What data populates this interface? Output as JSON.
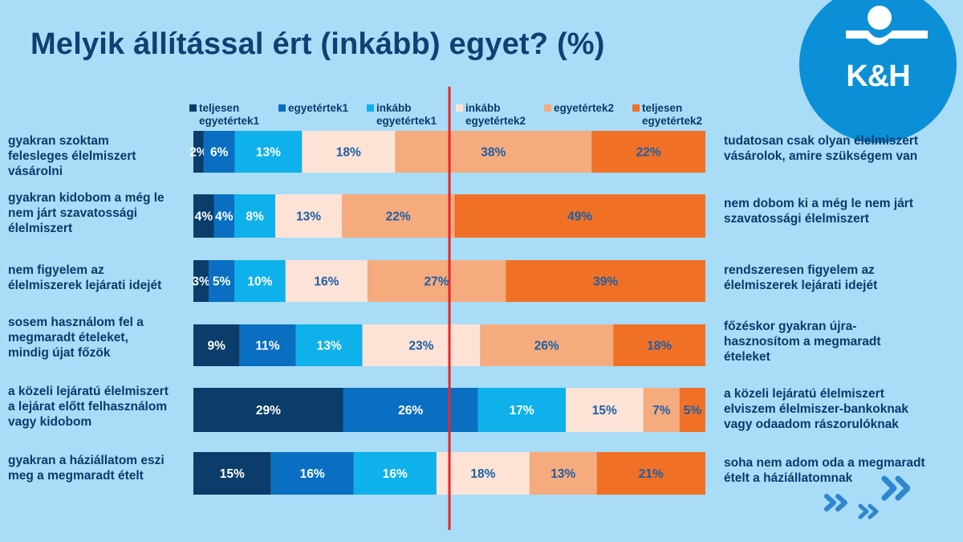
{
  "title": "Melyik állítással ért (inkább) egyet? (%)",
  "logo": {
    "text": "K&H",
    "colors": {
      "circle": "#0b8fd6",
      "mark": "#ffffff"
    }
  },
  "colors": {
    "background": "#a9dcf7",
    "title": "#0f3f73",
    "divider": "#e8262a",
    "arrows": "#2e86d0"
  },
  "chart_data": {
    "type": "bar",
    "orientation": "horizontal",
    "stacked": true,
    "grid": false,
    "legend_position": "top",
    "series": [
      {
        "name": "teljesen egyetértek1",
        "color": "#0a3d6a",
        "label_color": "#ffffff",
        "values": [
          2,
          4,
          3,
          9,
          29,
          15
        ]
      },
      {
        "name": "egyetértek1",
        "color": "#0a6fc2",
        "label_color": "#ffffff",
        "values": [
          6,
          4,
          5,
          11,
          26,
          16
        ]
      },
      {
        "name": "inkább egyetértek1",
        "color": "#0fb1ea",
        "label_color": "#ffffff",
        "values": [
          13,
          8,
          10,
          13,
          17,
          16
        ]
      },
      {
        "name": "inkább egyetértek2",
        "color": "#fce3d6",
        "label_color": "#1d5fa6",
        "values": [
          18,
          13,
          16,
          23,
          15,
          18
        ]
      },
      {
        "name": "egyetértek2",
        "color": "#f5ab7d",
        "label_color": "#1d5fa6",
        "values": [
          38,
          22,
          27,
          26,
          7,
          13
        ]
      },
      {
        "name": "teljesen egyetértek2",
        "color": "#f07125",
        "label_color": "#1d5fa6",
        "values": [
          22,
          49,
          39,
          18,
          5,
          21
        ]
      }
    ],
    "categories_left": [
      [
        "gyakran szoktam",
        "felesleges élelmiszert",
        "vásárolni"
      ],
      [
        "gyakran kidobom a még le",
        "nem járt szavatossági",
        "élelmiszert"
      ],
      [
        "nem figyelem az",
        "élelmiszerek lejárati idejét"
      ],
      [
        "sosem használom fel a",
        "megmaradt ételeket,",
        "mindig újat főzök"
      ],
      [
        "a közeli lejáratú élelmiszert",
        "a lejárat előtt felhasználom",
        "vagy kidobom"
      ],
      [
        "gyakran a háziállatom eszi",
        "meg a megmaradt ételt"
      ]
    ],
    "categories_right": [
      [
        "tudatosan csak olyan élelmiszert",
        "vásárolok, amire szükségem van"
      ],
      [
        "nem dobom ki a még le nem járt",
        "szavatossági élelmiszert"
      ],
      [
        "rendszeresen figyelem az",
        "élelmiszerek lejárati idejét"
      ],
      [
        "főzéskor gyakran újra-",
        "hasznosítom a megmaradt",
        "ételeket"
      ],
      [
        "a közeli lejáratú élelmiszert",
        "elviszem élelmiszer-bankoknak",
        "vagy odaadom rászorulóknak"
      ],
      [
        "soha nem adom oda a megmaradt",
        "ételt a háziállatomnak"
      ]
    ],
    "data_labels": [
      [
        "2%",
        "6%",
        "13%",
        "18%",
        "38%",
        "22%"
      ],
      [
        "4%",
        "4%",
        "8%",
        "13%",
        "22%",
        "49%"
      ],
      [
        "3%",
        "5%",
        "10%",
        "16%",
        "27%",
        "39%"
      ],
      [
        "9%",
        "11%",
        "13%",
        "23%",
        "26%",
        "18%"
      ],
      [
        "29%",
        "26%",
        "17%",
        "15%",
        "7%",
        "5%"
      ],
      [
        "15%",
        "16%",
        "16%",
        "18%",
        "13%",
        "21%"
      ]
    ],
    "unit": "%"
  }
}
